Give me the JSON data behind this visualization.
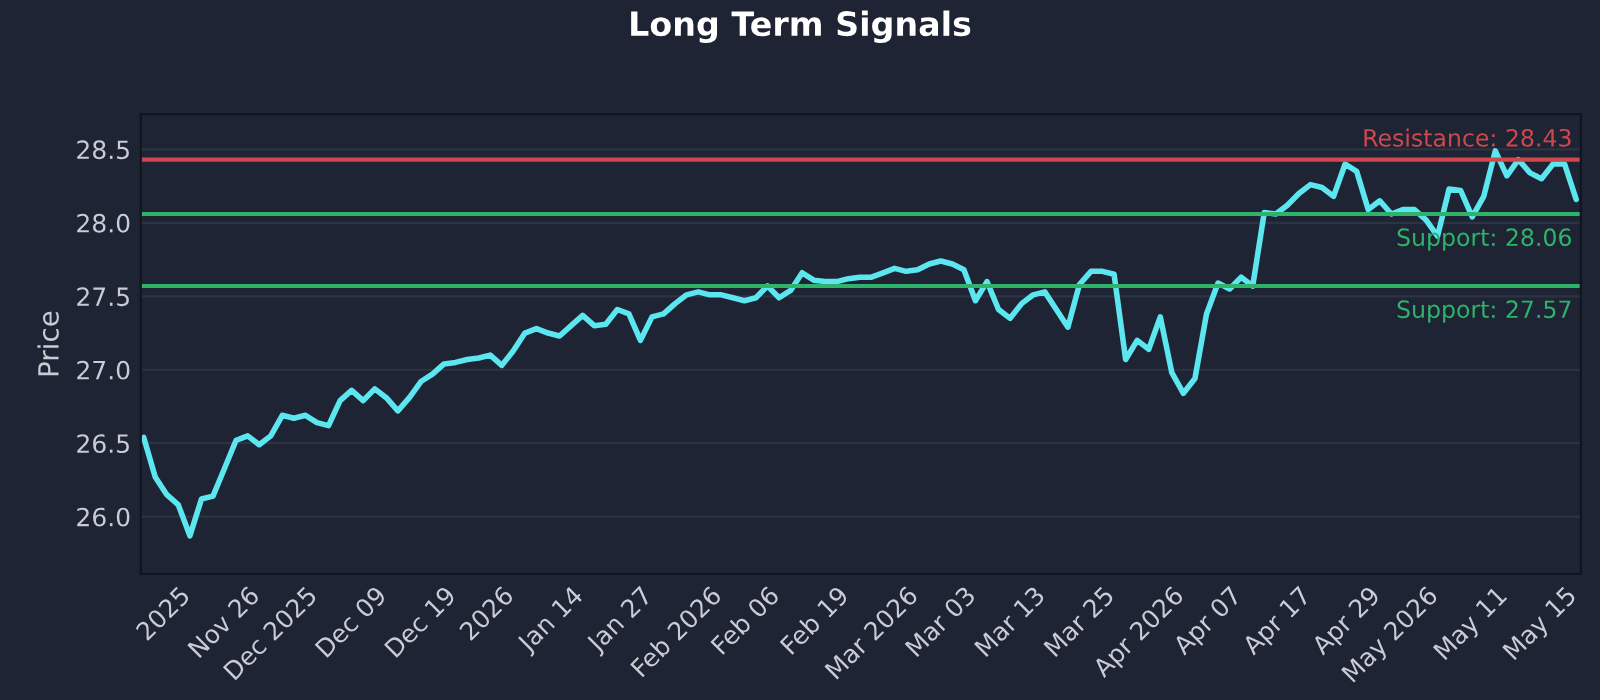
{
  "chart_data": {
    "type": "line",
    "title": "Long Term Signals",
    "ylabel": "Price",
    "categories": [
      null,
      null,
      null,
      "2025",
      null,
      null,
      null,
      null,
      null,
      "Nov 26",
      null,
      null,
      null,
      null,
      "Dec 2025",
      null,
      null,
      null,
      null,
      null,
      "Dec 09",
      null,
      null,
      null,
      null,
      null,
      "Dec 19",
      null,
      null,
      null,
      null,
      "2026",
      null,
      null,
      null,
      null,
      null,
      "Jan 14",
      null,
      null,
      null,
      null,
      null,
      "Jan 27",
      null,
      null,
      null,
      null,
      null,
      "Feb 2026",
      null,
      null,
      null,
      null,
      "Feb 06",
      null,
      null,
      null,
      null,
      null,
      "Feb 19",
      null,
      null,
      null,
      null,
      null,
      "Mar 2026",
      null,
      null,
      null,
      null,
      "Mar 03",
      null,
      null,
      null,
      null,
      null,
      "Mar 13",
      null,
      null,
      null,
      null,
      null,
      "Mar 25",
      null,
      null,
      null,
      null,
      null,
      "Apr 2026",
      null,
      null,
      null,
      null,
      "Apr 07",
      null,
      null,
      null,
      null,
      null,
      "Apr 17",
      null,
      null,
      null,
      null,
      null,
      "Apr 29",
      null,
      null,
      null,
      null,
      "May 2026",
      null,
      null,
      null,
      null,
      null,
      "May 11",
      null,
      null,
      null,
      null,
      null,
      "May 15",
      null
    ],
    "series": [
      {
        "color": "#5ce6ef",
        "values": [
          26.54,
          26.27,
          26.15,
          26.08,
          25.87,
          26.12,
          26.14,
          26.33,
          26.52,
          26.55,
          26.49,
          26.55,
          26.69,
          26.67,
          26.69,
          26.64,
          26.62,
          26.79,
          26.86,
          26.79,
          26.87,
          26.81,
          26.72,
          26.81,
          26.92,
          26.97,
          27.04,
          27.05,
          27.07,
          27.08,
          27.1,
          27.03,
          27.13,
          27.25,
          27.28,
          27.25,
          27.23,
          27.3,
          27.37,
          27.3,
          27.31,
          27.41,
          27.38,
          27.2,
          27.36,
          27.38,
          27.45,
          27.51,
          27.53,
          27.51,
          27.51,
          27.49,
          27.47,
          27.49,
          27.57,
          27.49,
          27.54,
          27.66,
          27.61,
          27.6,
          27.6,
          27.62,
          27.63,
          27.63,
          27.66,
          27.69,
          27.67,
          27.68,
          27.72,
          27.74,
          27.72,
          27.68,
          27.47,
          27.6,
          27.41,
          27.35,
          27.45,
          27.51,
          27.53,
          27.41,
          27.29,
          27.58,
          27.67,
          27.67,
          27.65,
          27.07,
          27.2,
          27.14,
          27.36,
          26.98,
          26.84,
          26.94,
          27.38,
          27.59,
          27.55,
          27.63,
          27.57,
          28.07,
          28.06,
          28.12,
          28.2,
          28.26,
          28.24,
          28.18,
          28.4,
          28.35,
          28.09,
          28.15,
          28.06,
          28.09,
          28.09,
          28.02,
          27.91,
          28.23,
          28.22,
          28.04,
          28.18,
          28.49,
          28.32,
          28.43,
          28.34,
          28.3,
          28.4,
          28.4,
          28.16
        ]
      }
    ],
    "ylim": [
      25.61,
      28.74
    ],
    "yticks": [
      {
        "value": 26,
        "label": "26.0"
      },
      {
        "value": 26.5,
        "label": "26.5"
      },
      {
        "value": 27,
        "label": "27.0"
      },
      {
        "value": 27.5,
        "label": "27.5"
      },
      {
        "value": 28,
        "label": "28.0"
      },
      {
        "value": 28.5,
        "label": "28.5"
      }
    ],
    "ref_lines": [
      {
        "axis": "y",
        "value": 28.43,
        "label": "Resistance: 28.43",
        "color": "#d0474c"
      },
      {
        "axis": "y",
        "value": 28.06,
        "label": "Support: 28.06",
        "color": "#2fb36a"
      },
      {
        "axis": "y",
        "value": 27.57,
        "label": "Support: 27.57",
        "color": "#2fb36a"
      }
    ],
    "grid": "y",
    "marker": "none",
    "line_style": "solid"
  }
}
